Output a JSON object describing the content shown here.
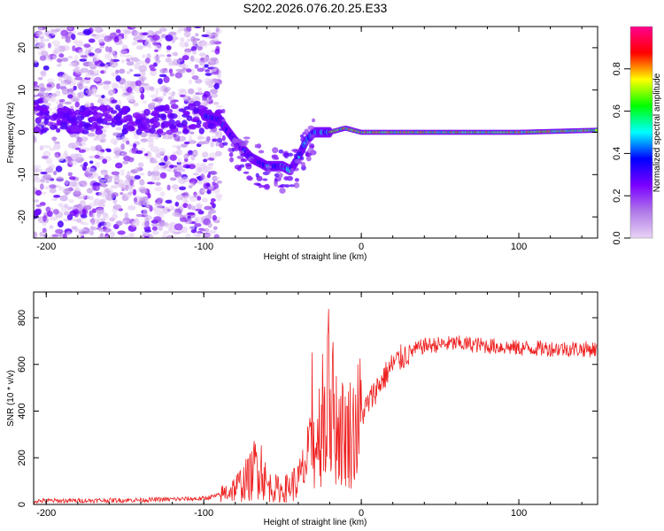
{
  "title": "S202.2026.076.20.25.E33",
  "chart_data": [
    {
      "type": "heatmap",
      "name": "spectrogram",
      "xlabel": "Height of straight line (km)",
      "ylabel": "Frequency (Hz)",
      "xlim": [
        -208,
        150
      ],
      "ylim": [
        -25,
        25
      ],
      "xticks": [
        "-200",
        "-100",
        "0",
        "100"
      ],
      "xtick_values": [
        -200,
        -100,
        0,
        100
      ],
      "yticks": [
        "20",
        "10",
        "0",
        "-10",
        "-20"
      ],
      "ytick_values": [
        20,
        10,
        0,
        -10,
        -20
      ],
      "colorbar": {
        "label": "Normalized spectral amplitude",
        "range": [
          0.0,
          1.0
        ],
        "ticks": [
          "0.0",
          "0.2",
          "0.4",
          "0.6",
          "0.8"
        ],
        "tick_values": [
          0.0,
          0.2,
          0.4,
          0.6,
          0.8
        ],
        "colors": [
          "#e8d4f4",
          "#b07ae8",
          "#7a00ff",
          "#0000ff",
          "#00ffff",
          "#00ff00",
          "#ffff00",
          "#ff0000",
          "#ff0090"
        ]
      },
      "ridge": {
        "x": [
          -100,
          -90,
          -80,
          -70,
          -60,
          -50,
          -45,
          -40,
          -35,
          -30,
          -20,
          -10,
          0,
          20,
          50,
          80,
          100,
          150
        ],
        "y": [
          4,
          3,
          -2,
          -6,
          -8,
          -8,
          -9,
          -6,
          -2,
          0,
          0,
          1,
          0,
          0,
          0,
          0,
          0,
          0.5
        ]
      }
    },
    {
      "type": "line",
      "name": "snr",
      "xlabel": "Height of straight line (km)",
      "ylabel": "SNR (10 * v/v)",
      "xlim": [
        -208,
        150
      ],
      "ylim": [
        0,
        910
      ],
      "xticks": [
        "-200",
        "-100",
        "0",
        "100"
      ],
      "xtick_values": [
        -200,
        -100,
        0,
        100
      ],
      "yticks": [
        "800",
        "600",
        "400",
        "200",
        "0"
      ],
      "ytick_values": [
        800,
        600,
        400,
        200,
        0
      ],
      "color": "#ee2222",
      "x": [
        -208,
        -150,
        -100,
        -90,
        -80,
        -70,
        -65,
        -60,
        -50,
        -40,
        -30,
        -25,
        -20,
        -15,
        -10,
        -5,
        0,
        10,
        20,
        30,
        40,
        60,
        100,
        150
      ],
      "y": [
        15,
        18,
        25,
        40,
        70,
        120,
        200,
        80,
        60,
        100,
        250,
        350,
        450,
        330,
        300,
        320,
        380,
        500,
        600,
        650,
        680,
        690,
        670,
        665
      ]
    }
  ]
}
